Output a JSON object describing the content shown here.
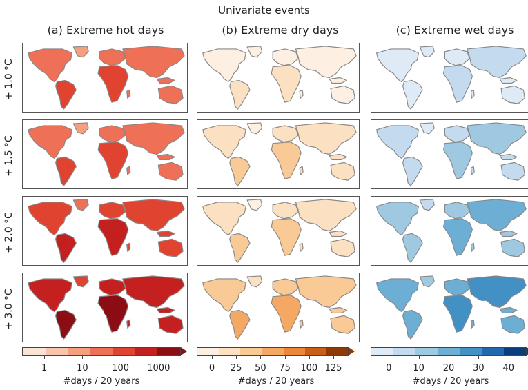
{
  "figure_title": "Univariate events",
  "columns": [
    {
      "title": "(a) Extreme hot days",
      "scheme": "reds",
      "colorbar": {
        "ticks": [
          "1",
          "10",
          "100",
          "1000"
        ],
        "label": "#days / 20 years",
        "extend": "max"
      }
    },
    {
      "title": "(b) Extreme dry days",
      "scheme": "oranges",
      "colorbar": {
        "ticks": [
          "0",
          "25",
          "50",
          "75",
          "100",
          "125"
        ],
        "label": "#days / 20 years",
        "extend": "max"
      }
    },
    {
      "title": "(c) Extreme wet days",
      "scheme": "blues",
      "colorbar": {
        "ticks": [
          "0",
          "10",
          "20",
          "30",
          "40"
        ],
        "label": "#days / 20 years",
        "extend": "max"
      }
    }
  ],
  "rows": [
    "+ 1.0 °C",
    "+ 1.5 °C",
    "+ 2.0 °C",
    "+ 3.0 °C"
  ],
  "colors": {
    "reds": [
      "#fbe3d6",
      "#f9c4ab",
      "#f4a07e",
      "#ee7056",
      "#e14331",
      "#c3201f",
      "#8c0d14"
    ],
    "oranges": [
      "#fdf0e2",
      "#fbe0c2",
      "#f9c996",
      "#f5a863",
      "#ec8739",
      "#cc5d14",
      "#8e3a06"
    ],
    "blues": [
      "#deebf6",
      "#c4daee",
      "#9fc9e1",
      "#6daed4",
      "#4390c4",
      "#2268ac",
      "#0b3e7d"
    ],
    "land_outline": "#888888"
  },
  "chart_data": {
    "type": "heatmap",
    "title": "Univariate events",
    "description_unit": "#days / 20 years",
    "panels": [
      {
        "column": "(a) Extreme hot days",
        "row": "+ 1.0 °C",
        "level": 3
      },
      {
        "column": "(a) Extreme hot days",
        "row": "+ 1.5 °C",
        "level": 3
      },
      {
        "column": "(a) Extreme hot days",
        "row": "+ 2.0 °C",
        "level": 4
      },
      {
        "column": "(a) Extreme hot days",
        "row": "+ 3.0 °C",
        "level": 5
      },
      {
        "column": "(b) Extreme dry days",
        "row": "+ 1.0 °C",
        "level": 0
      },
      {
        "column": "(b) Extreme dry days",
        "row": "+ 1.5 °C",
        "level": 1
      },
      {
        "column": "(b) Extreme dry days",
        "row": "+ 2.0 °C",
        "level": 1
      },
      {
        "column": "(b) Extreme dry days",
        "row": "+ 3.0 °C",
        "level": 2
      },
      {
        "column": "(c) Extreme wet days",
        "row": "+ 1.0 °C",
        "level": 0
      },
      {
        "column": "(c) Extreme wet days",
        "row": "+ 1.5 °C",
        "level": 1
      },
      {
        "column": "(c) Extreme wet days",
        "row": "+ 2.0 °C",
        "level": 2
      },
      {
        "column": "(c) Extreme wet days",
        "row": "+ 3.0 °C",
        "level": 3
      }
    ]
  }
}
